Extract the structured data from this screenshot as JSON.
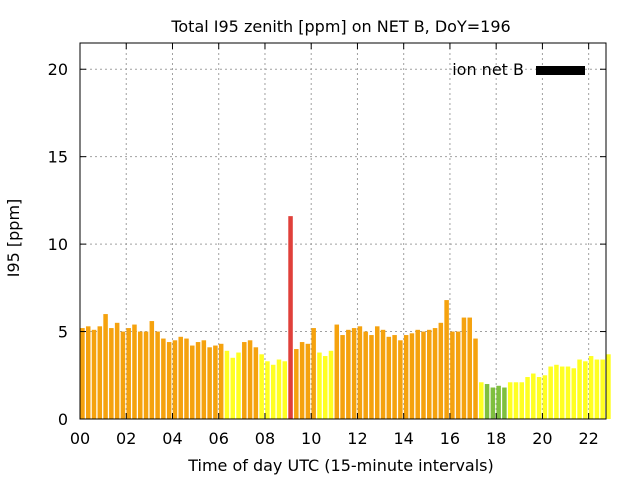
{
  "chart_data": {
    "type": "bar",
    "title": "Total I95 zenith [ppm] on NET B, DoY=196",
    "xlabel": "Time of day UTC (15-minute intervals)",
    "ylabel": "I95 [ppm]",
    "xlim": [
      0,
      22.75
    ],
    "ylim": [
      0,
      21.5
    ],
    "grid": true,
    "legend": {
      "position": "top-right",
      "entries": [
        {
          "name": "ion net B",
          "color": "#000000"
        }
      ]
    },
    "x_ticks": [
      "00",
      "02",
      "04",
      "06",
      "08",
      "10",
      "12",
      "14",
      "16",
      "18",
      "20",
      "22"
    ],
    "x_tick_values": [
      0,
      2,
      4,
      6,
      8,
      10,
      12,
      14,
      16,
      18,
      20,
      22
    ],
    "y_ticks": [
      "0",
      "5",
      "10",
      "15",
      "20"
    ],
    "y_tick_values": [
      0,
      5,
      10,
      15,
      20
    ],
    "interval_hours": 0.25,
    "values": [
      5.2,
      5.3,
      5.1,
      5.3,
      6.0,
      5.2,
      5.5,
      5.0,
      5.2,
      5.4,
      5.0,
      5.0,
      5.6,
      5.0,
      4.6,
      4.4,
      4.5,
      4.7,
      4.6,
      4.2,
      4.4,
      4.5,
      4.1,
      4.2,
      4.3,
      3.9,
      3.5,
      3.8,
      4.4,
      4.5,
      4.1,
      3.7,
      3.3,
      3.1,
      3.4,
      3.3,
      11.6,
      4.0,
      4.4,
      4.3,
      5.2,
      3.8,
      3.6,
      3.9,
      5.4,
      4.8,
      5.1,
      5.2,
      5.3,
      5.0,
      4.8,
      5.3,
      5.1,
      4.7,
      4.8,
      4.5,
      4.8,
      4.9,
      5.1,
      5.0,
      5.1,
      5.2,
      5.5,
      6.8,
      5.0,
      5.0,
      5.8,
      5.8,
      4.6,
      2.1,
      2.0,
      1.8,
      1.9,
      1.8,
      2.1,
      2.1,
      2.1,
      2.4,
      2.6,
      2.4,
      2.5,
      3.0,
      3.1,
      3.0,
      3.0,
      2.9,
      3.4,
      3.3,
      3.6,
      3.4,
      3.4,
      3.7
    ],
    "colors": {
      "orange": "#f5a20e",
      "yellow": "#ffff22",
      "red": "#e0403a",
      "green": "#7fbf3f"
    },
    "bar_color_keys": [
      "orange",
      "orange",
      "orange",
      "orange",
      "orange",
      "orange",
      "orange",
      "orange",
      "orange",
      "orange",
      "orange",
      "orange",
      "orange",
      "orange",
      "orange",
      "orange",
      "orange",
      "orange",
      "orange",
      "orange",
      "orange",
      "orange",
      "orange",
      "orange",
      "orange",
      "yellow",
      "yellow",
      "yellow",
      "orange",
      "orange",
      "orange",
      "yellow",
      "yellow",
      "yellow",
      "yellow",
      "yellow",
      "red",
      "orange",
      "orange",
      "orange",
      "orange",
      "yellow",
      "yellow",
      "yellow",
      "orange",
      "orange",
      "orange",
      "orange",
      "orange",
      "orange",
      "orange",
      "orange",
      "orange",
      "orange",
      "orange",
      "orange",
      "orange",
      "orange",
      "orange",
      "orange",
      "orange",
      "orange",
      "orange",
      "orange",
      "orange",
      "orange",
      "orange",
      "orange",
      "orange",
      "yellow",
      "green",
      "green",
      "green",
      "green",
      "yellow",
      "yellow",
      "yellow",
      "yellow",
      "yellow",
      "yellow",
      "yellow",
      "yellow",
      "yellow",
      "yellow",
      "yellow",
      "yellow",
      "yellow",
      "yellow",
      "yellow",
      "yellow",
      "yellow",
      "yellow"
    ]
  }
}
